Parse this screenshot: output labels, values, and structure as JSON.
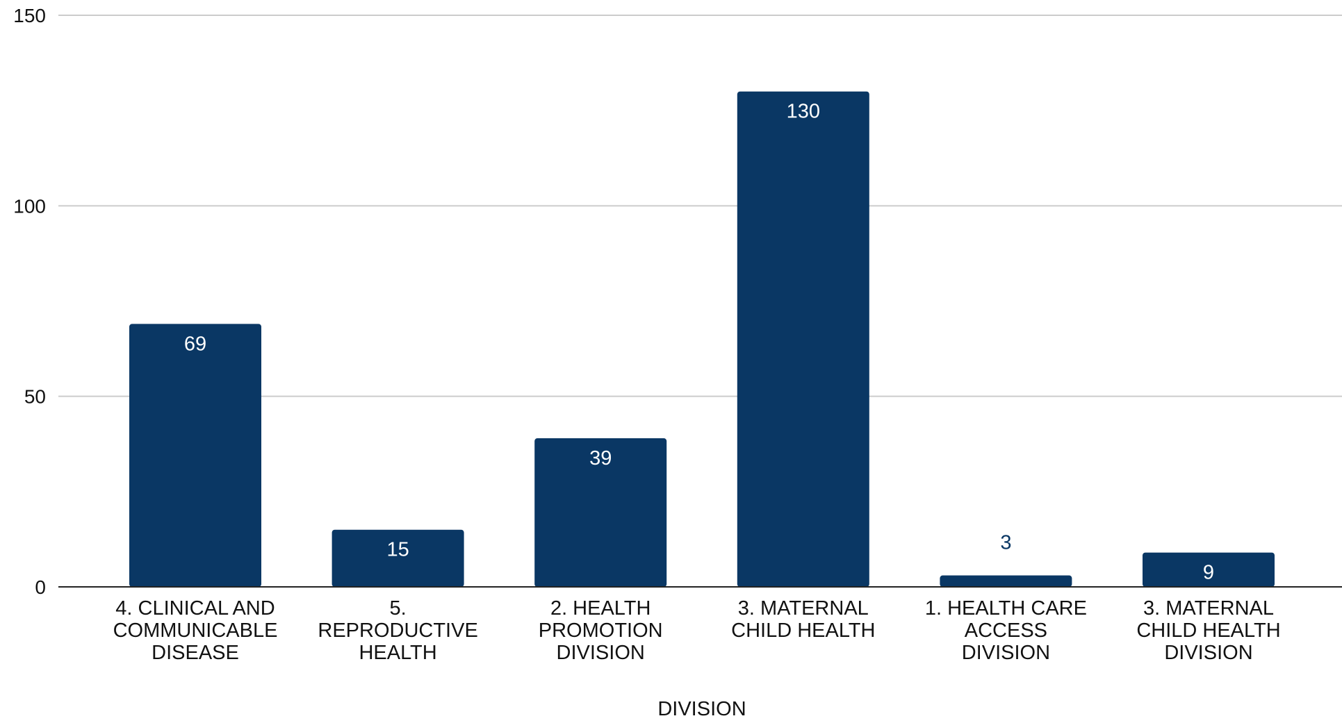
{
  "chart_data": {
    "type": "bar",
    "title": "",
    "xlabel": "DIVISION",
    "ylabel": "",
    "ylim": [
      0,
      150
    ],
    "yticks": [
      0,
      50,
      100,
      150
    ],
    "grid": true,
    "legend": "none",
    "categories": [
      [
        "4. CLINICAL AND",
        "COMMUNICABLE",
        "DISEASE"
      ],
      [
        "5.",
        "REPRODUCTIVE",
        "HEALTH"
      ],
      [
        "2. HEALTH",
        "PROMOTION",
        "DIVISION"
      ],
      [
        "3. MATERNAL",
        "CHILD HEALTH"
      ],
      [
        "1. HEALTH CARE",
        "ACCESS",
        "DIVISION"
      ],
      [
        "3. MATERNAL",
        "CHILD HEALTH",
        "DIVISION"
      ]
    ],
    "values": [
      69,
      15,
      39,
      130,
      3,
      9
    ],
    "colors": {
      "bar": "#0a3764",
      "grid": "#cccccc",
      "axis": "#222222",
      "text": "#111111",
      "label_inside": "#ffffff",
      "label_outside": "#0a3764"
    }
  }
}
